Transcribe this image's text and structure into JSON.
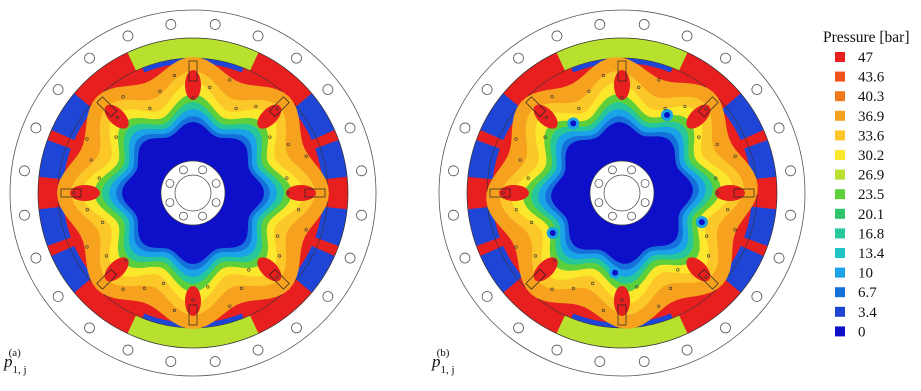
{
  "legend": {
    "title": "Pressure [bar]",
    "entries": [
      {
        "value": "47",
        "color": "#e81f1f"
      },
      {
        "value": "43.6",
        "color": "#f0521a"
      },
      {
        "value": "40.3",
        "color": "#f27a1c"
      },
      {
        "value": "36.9",
        "color": "#f7a21f"
      },
      {
        "value": "33.6",
        "color": "#fcc728"
      },
      {
        "value": "30.2",
        "color": "#fbe72c"
      },
      {
        "value": "26.9",
        "color": "#b8e02e"
      },
      {
        "value": "23.5",
        "color": "#5dcf3a"
      },
      {
        "value": "20.1",
        "color": "#2fc466"
      },
      {
        "value": "16.8",
        "color": "#26c79a"
      },
      {
        "value": "13.4",
        "color": "#22c3c8"
      },
      {
        "value": "10",
        "color": "#1aa3e6"
      },
      {
        "value": "6.7",
        "color": "#1670dc"
      },
      {
        "value": "3.4",
        "color": "#1f45d6"
      },
      {
        "value": "0",
        "color": "#0d10c8"
      }
    ]
  },
  "panels": [
    {
      "label_main": "p",
      "label_sub": "1, j",
      "label_sup": "(a)"
    },
    {
      "label_main": "p",
      "label_sub": "1, j",
      "label_sup": "(b)"
    }
  ]
}
